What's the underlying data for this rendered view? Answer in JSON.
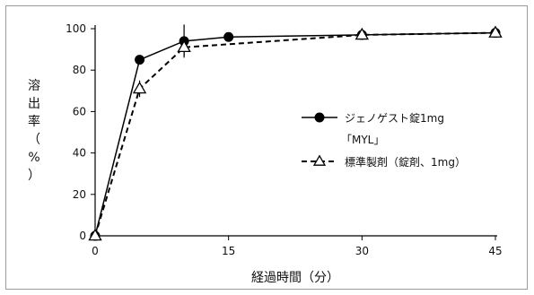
{
  "chart_data": {
    "type": "line",
    "title": "",
    "xlabel": "経過時間（分）",
    "ylabel_chars": [
      "溶",
      "出",
      "率",
      "（",
      "%",
      "）"
    ],
    "xlim": [
      0,
      45
    ],
    "ylim": [
      0,
      100
    ],
    "x_ticks": [
      "0",
      "15",
      "30",
      "45"
    ],
    "y_ticks": [
      "0",
      "20",
      "40",
      "60",
      "80",
      "100"
    ],
    "grid": false,
    "legend_position": "center-right",
    "series": [
      {
        "name_lines": [
          "ジェノゲスト錠1mg",
          "「MYL」"
        ],
        "style": "solid",
        "marker": "filled-circle",
        "color": "#000000",
        "x": [
          0,
          5,
          10,
          15,
          30,
          45
        ],
        "y": [
          0,
          85,
          94,
          96,
          97,
          98
        ],
        "err": [
          0,
          2,
          8,
          1,
          1,
          1
        ]
      },
      {
        "name_lines": [
          "標準製剤（錠剤、1mg）"
        ],
        "style": "dashed",
        "marker": "open-triangle",
        "color": "#000000",
        "x": [
          0,
          5,
          10,
          30,
          45
        ],
        "y": [
          0,
          71,
          91,
          97,
          98
        ],
        "err": [
          0,
          4,
          4,
          1,
          1
        ]
      }
    ]
  }
}
